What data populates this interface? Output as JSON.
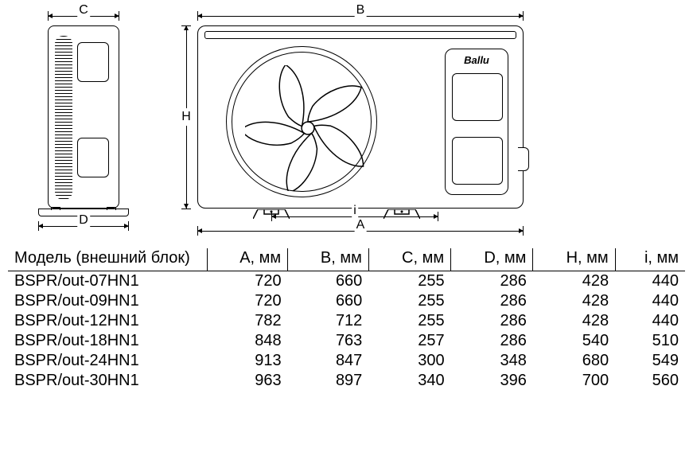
{
  "brand": "Ballu",
  "stroke_color": "#000000",
  "background_color": "#ffffff",
  "diagram": {
    "side": {
      "top_dim_label": "C",
      "bottom_dim_label": "D"
    },
    "front": {
      "top_dim_label": "B",
      "height_dim_label": "H",
      "inner_width_label": "i",
      "outer_width_label": "A"
    }
  },
  "table": {
    "header": "Модель (внешний блок)",
    "columns": [
      "A, мм",
      "B, мм",
      "C, мм",
      "D, мм",
      "H, мм",
      "i, мм"
    ],
    "rows": [
      {
        "model": "BSPR/out-07HN1",
        "values": [
          720,
          660,
          255,
          286,
          428,
          440
        ]
      },
      {
        "model": "BSPR/out-09HN1",
        "values": [
          720,
          660,
          255,
          286,
          428,
          440
        ]
      },
      {
        "model": "BSPR/out-12HN1",
        "values": [
          782,
          712,
          255,
          286,
          428,
          440
        ]
      },
      {
        "model": "BSPR/out-18HN1",
        "values": [
          848,
          763,
          257,
          286,
          540,
          510
        ]
      },
      {
        "model": "BSPR/out-24HN1",
        "values": [
          913,
          847,
          300,
          348,
          680,
          549
        ]
      },
      {
        "model": "BSPR/out-30HN1",
        "values": [
          963,
          897,
          340,
          396,
          700,
          560
        ]
      }
    ]
  }
}
